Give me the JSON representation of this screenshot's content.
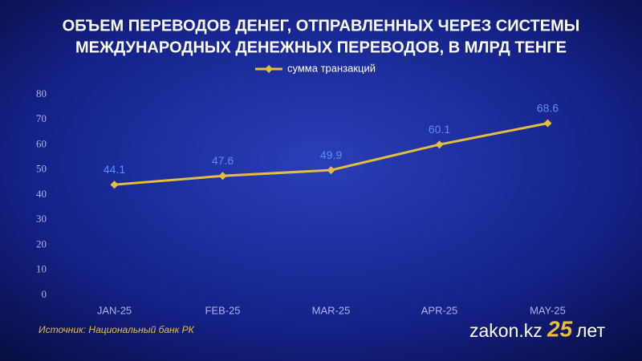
{
  "chart_data": {
    "type": "line",
    "title": [
      "ОБЪЕМ ПЕРЕВОДОВ ДЕНЕГ, ОТПРАВЛЕННЫХ ЧЕРЕЗ СИСТЕМЫ",
      "МЕЖДУНАРОДНЫХ ДЕНЕЖНЫХ ПЕРЕВОДОВ, В МЛРД ТЕНГЕ"
    ],
    "categories": [
      "JAN-25",
      "FEB-25",
      "MAR-25",
      "APR-25",
      "MAY-25"
    ],
    "series": [
      {
        "name": "сумма транзакций",
        "color": "#e6bf3a",
        "values": [
          44.1,
          47.6,
          49.9,
          60.1,
          68.6
        ]
      }
    ],
    "ylim": [
      0,
      80
    ],
    "yticks": [
      0,
      10,
      20,
      30,
      40,
      50,
      60,
      70,
      80
    ],
    "grid": false,
    "legend": "top",
    "source": "Источник: Национальный банк РК"
  },
  "branding": {
    "site": "zakon.kz",
    "number": "25",
    "word": "лет"
  }
}
